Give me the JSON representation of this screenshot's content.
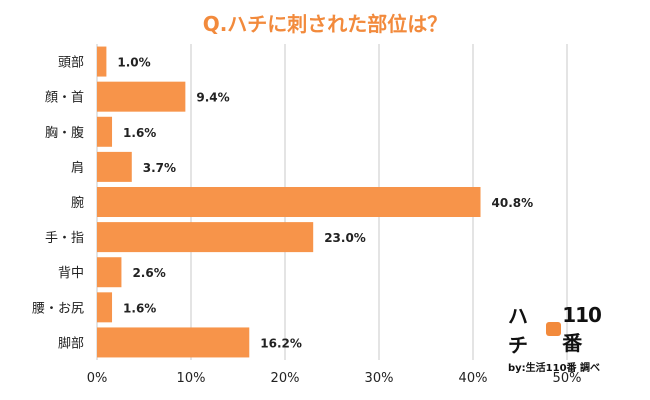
{
  "logo": {
    "brand_left": "ハチ",
    "brand_right": "110番",
    "sub": "by:生活110番 調べ"
  },
  "colors": {
    "bar": "#f7944a",
    "grid": "#c8c8c8",
    "title": "#f28a3c"
  },
  "chart_data": {
    "type": "bar",
    "orientation": "horizontal",
    "title": "Q.ハチに刺された部位は？",
    "categories": [
      "頭部",
      "顔・首",
      "胸・腹",
      "肩",
      "腕",
      "手・指",
      "背中",
      "腰・お尻",
      "脚部"
    ],
    "values": [
      1.0,
      9.4,
      1.6,
      3.7,
      40.8,
      23.0,
      2.6,
      1.6,
      16.2
    ],
    "value_labels": [
      "1.0%",
      "9.4%",
      "1.6%",
      "3.7%",
      "40.8%",
      "23.0%",
      "2.6%",
      "1.6%",
      "16.2%"
    ],
    "xlim": [
      0,
      50
    ],
    "xticks": [
      0,
      10,
      20,
      30,
      40,
      50
    ],
    "xtick_labels": [
      "0%",
      "10%",
      "20%",
      "30%",
      "40%",
      "50%"
    ],
    "grid": true,
    "legend": "none"
  }
}
